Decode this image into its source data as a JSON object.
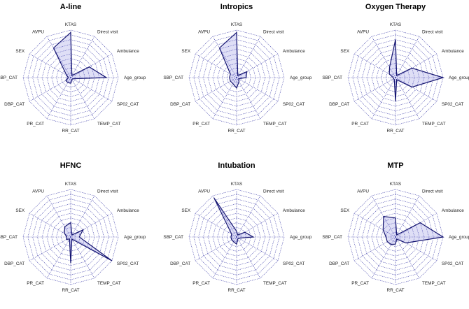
{
  "figure": {
    "panel_count": 6
  },
  "axes": [
    "KTAS",
    "Direct visit",
    "Ambulance",
    "Age_group",
    "SP02_CAT",
    "TEMP_CAT",
    "RR_CAT",
    "PR_CAT",
    "DBP_CAT",
    "SBP_CAT",
    "SEX",
    "AVPU"
  ],
  "grid_levels": 10,
  "colors": {
    "grid": "#3a3aa8",
    "series_line": "#141470",
    "series_fill": "rgba(110,110,215,0.22)"
  },
  "chart_data": [
    {
      "type": "radar",
      "title": "A-line",
      "axes": [
        "KTAS",
        "Direct visit",
        "Ambulance",
        "Age_group",
        "SP02_CAT",
        "TEMP_CAT",
        "RR_CAT",
        "PR_CAT",
        "DBP_CAT",
        "SBP_CAT",
        "SEX",
        "AVPU"
      ],
      "range": [
        0,
        1
      ],
      "values": [
        0.95,
        0.05,
        0.45,
        0.75,
        0.05,
        0.05,
        0.12,
        0.12,
        0.12,
        0.05,
        0.1,
        0.72
      ]
    },
    {
      "type": "radar",
      "title": "Intropics",
      "axes": [
        "KTAS",
        "Direct visit",
        "Ambulance",
        "Age_group",
        "SP02_CAT",
        "TEMP_CAT",
        "RR_CAT",
        "PR_CAT",
        "DBP_CAT",
        "SBP_CAT",
        "SEX",
        "AVPU"
      ],
      "range": [
        0,
        1
      ],
      "values": [
        0.95,
        0.05,
        0.25,
        0.2,
        0.05,
        0.1,
        0.22,
        0.15,
        0.15,
        0.15,
        0.15,
        0.72
      ]
    },
    {
      "type": "radar",
      "title": "Oxygen Therapy",
      "axes": [
        "KTAS",
        "Direct visit",
        "Ambulance",
        "Age_group",
        "SP02_CAT",
        "TEMP_CAT",
        "RR_CAT",
        "PR_CAT",
        "DBP_CAT",
        "SBP_CAT",
        "SEX",
        "AVPU"
      ],
      "range": [
        0,
        1
      ],
      "values": [
        0.8,
        0.05,
        0.4,
        1.0,
        0.4,
        0.05,
        0.5,
        0.05,
        0.05,
        0.05,
        0.15,
        0.25
      ]
    },
    {
      "type": "radar",
      "title": "HFNC",
      "axes": [
        "KTAS",
        "Direct visit",
        "Ambulance",
        "Age_group",
        "SP02_CAT",
        "TEMP_CAT",
        "RR_CAT",
        "PR_CAT",
        "DBP_CAT",
        "SBP_CAT",
        "SEX",
        "AVPU"
      ],
      "range": [
        0,
        1
      ],
      "values": [
        0.3,
        0.05,
        0.3,
        0.18,
        1.0,
        0.05,
        0.55,
        0.05,
        0.1,
        0.08,
        0.15,
        0.25
      ]
    },
    {
      "type": "radar",
      "title": "Intubation",
      "axes": [
        "KTAS",
        "Direct visit",
        "Ambulance",
        "Age_group",
        "SP02_CAT",
        "TEMP_CAT",
        "RR_CAT",
        "PR_CAT",
        "DBP_CAT",
        "SBP_CAT",
        "SEX",
        "AVPU"
      ],
      "range": [
        0,
        1
      ],
      "values": [
        0.12,
        0.05,
        0.2,
        0.35,
        0.05,
        0.05,
        0.15,
        0.12,
        0.12,
        0.12,
        0.12,
        0.95
      ]
    },
    {
      "type": "radar",
      "title": "MTP",
      "axes": [
        "KTAS",
        "Direct visit",
        "Ambulance",
        "Age_group",
        "SP02_CAT",
        "TEMP_CAT",
        "RR_CAT",
        "PR_CAT",
        "DBP_CAT",
        "SBP_CAT",
        "SEX",
        "AVPU"
      ],
      "range": [
        0,
        1
      ],
      "values": [
        0.4,
        0.05,
        0.6,
        1.0,
        0.25,
        0.05,
        0.15,
        0.18,
        0.2,
        0.2,
        0.3,
        0.5
      ]
    }
  ]
}
